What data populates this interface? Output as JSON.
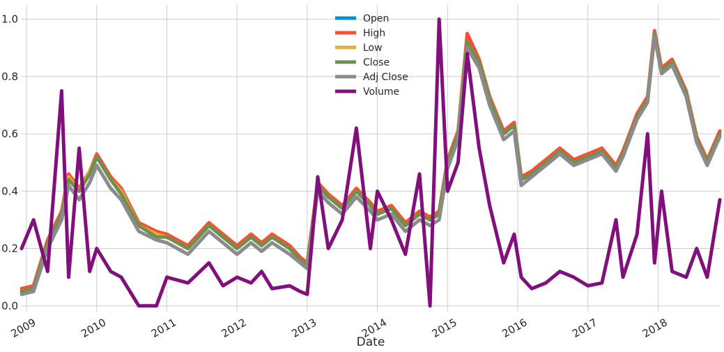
{
  "chart_data": {
    "type": "line",
    "title": "",
    "xlabel": "Date",
    "ylabel": "",
    "ylim": [
      -0.02,
      1.05
    ],
    "xlim": [
      2008.93,
      2018.88
    ],
    "grid": true,
    "legend_position": "top-center",
    "y_ticks": [
      0.0,
      0.2,
      0.4,
      0.6,
      0.8,
      1.0
    ],
    "y_tick_labels": [
      "0.0",
      "0.2",
      "0.4",
      "0.6",
      "0.8",
      "1.0"
    ],
    "x_ticks": [
      2009,
      2010,
      2011,
      2012,
      2013,
      2014,
      2015,
      2016,
      2017,
      2018
    ],
    "x_tick_labels": [
      "2009",
      "2010",
      "2011",
      "2012",
      "2013",
      "2014",
      "2015",
      "2016",
      "2017",
      "2018"
    ],
    "x": [
      2008.93,
      2009.1,
      2009.3,
      2009.5,
      2009.6,
      2009.75,
      2009.9,
      2010.0,
      2010.2,
      2010.35,
      2010.6,
      2010.85,
      2011.0,
      2011.3,
      2011.6,
      2011.8,
      2012.0,
      2012.2,
      2012.35,
      2012.5,
      2012.75,
      2012.9,
      2013.0,
      2013.15,
      2013.3,
      2013.5,
      2013.7,
      2013.9,
      2014.0,
      2014.2,
      2014.4,
      2014.6,
      2014.75,
      2014.88,
      2015.0,
      2015.15,
      2015.28,
      2015.45,
      2015.6,
      2015.8,
      2015.95,
      2016.05,
      2016.2,
      2016.4,
      2016.6,
      2016.8,
      2017.0,
      2017.2,
      2017.4,
      2017.5,
      2017.7,
      2017.85,
      2017.95,
      2018.05,
      2018.2,
      2018.4,
      2018.55,
      2018.7,
      2018.88
    ],
    "series": [
      {
        "name": "Open",
        "color": "#008fd5",
        "values": [
          0.05,
          0.06,
          0.22,
          0.32,
          0.45,
          0.4,
          0.46,
          0.52,
          0.44,
          0.4,
          0.28,
          0.25,
          0.24,
          0.2,
          0.28,
          0.24,
          0.2,
          0.24,
          0.21,
          0.24,
          0.2,
          0.16,
          0.14,
          0.42,
          0.38,
          0.34,
          0.4,
          0.35,
          0.32,
          0.34,
          0.28,
          0.32,
          0.3,
          0.32,
          0.5,
          0.6,
          0.93,
          0.85,
          0.72,
          0.6,
          0.63,
          0.44,
          0.46,
          0.5,
          0.54,
          0.5,
          0.52,
          0.54,
          0.48,
          0.53,
          0.66,
          0.72,
          0.95,
          0.82,
          0.85,
          0.74,
          0.58,
          0.5,
          0.6
        ]
      },
      {
        "name": "High",
        "color": "#fc4f30",
        "values": [
          0.06,
          0.07,
          0.23,
          0.33,
          0.46,
          0.41,
          0.47,
          0.53,
          0.45,
          0.41,
          0.29,
          0.26,
          0.25,
          0.21,
          0.29,
          0.25,
          0.21,
          0.25,
          0.22,
          0.25,
          0.21,
          0.17,
          0.15,
          0.43,
          0.39,
          0.35,
          0.41,
          0.36,
          0.33,
          0.35,
          0.29,
          0.33,
          0.31,
          0.33,
          0.51,
          0.61,
          0.95,
          0.86,
          0.73,
          0.61,
          0.64,
          0.45,
          0.47,
          0.51,
          0.55,
          0.51,
          0.53,
          0.55,
          0.49,
          0.54,
          0.67,
          0.73,
          0.96,
          0.83,
          0.86,
          0.75,
          0.59,
          0.51,
          0.61
        ]
      },
      {
        "name": "Low",
        "color": "#e5ae38",
        "values": [
          0.05,
          0.06,
          0.22,
          0.32,
          0.45,
          0.4,
          0.47,
          0.52,
          0.44,
          0.4,
          0.28,
          0.25,
          0.24,
          0.2,
          0.28,
          0.24,
          0.2,
          0.24,
          0.21,
          0.24,
          0.2,
          0.16,
          0.14,
          0.42,
          0.38,
          0.34,
          0.4,
          0.35,
          0.32,
          0.34,
          0.28,
          0.32,
          0.3,
          0.32,
          0.5,
          0.6,
          0.92,
          0.85,
          0.72,
          0.6,
          0.63,
          0.44,
          0.46,
          0.5,
          0.54,
          0.5,
          0.52,
          0.54,
          0.48,
          0.53,
          0.66,
          0.72,
          0.95,
          0.82,
          0.85,
          0.74,
          0.58,
          0.5,
          0.6
        ]
      },
      {
        "name": "Close",
        "color": "#6d904f",
        "values": [
          0.05,
          0.06,
          0.22,
          0.32,
          0.44,
          0.4,
          0.46,
          0.52,
          0.44,
          0.39,
          0.28,
          0.24,
          0.24,
          0.2,
          0.28,
          0.24,
          0.2,
          0.24,
          0.21,
          0.24,
          0.2,
          0.16,
          0.14,
          0.42,
          0.38,
          0.34,
          0.4,
          0.35,
          0.32,
          0.34,
          0.28,
          0.32,
          0.3,
          0.32,
          0.5,
          0.6,
          0.92,
          0.85,
          0.72,
          0.6,
          0.63,
          0.44,
          0.46,
          0.5,
          0.54,
          0.5,
          0.52,
          0.54,
          0.48,
          0.53,
          0.66,
          0.72,
          0.95,
          0.82,
          0.85,
          0.74,
          0.58,
          0.5,
          0.6
        ]
      },
      {
        "name": "Adj Close",
        "color": "#8b8b8b",
        "values": [
          0.04,
          0.05,
          0.2,
          0.3,
          0.42,
          0.37,
          0.43,
          0.49,
          0.41,
          0.37,
          0.26,
          0.23,
          0.22,
          0.18,
          0.26,
          0.22,
          0.18,
          0.22,
          0.19,
          0.22,
          0.18,
          0.15,
          0.13,
          0.4,
          0.36,
          0.32,
          0.38,
          0.33,
          0.3,
          0.32,
          0.26,
          0.3,
          0.28,
          0.3,
          0.48,
          0.58,
          0.9,
          0.83,
          0.7,
          0.58,
          0.61,
          0.42,
          0.45,
          0.49,
          0.53,
          0.49,
          0.51,
          0.53,
          0.47,
          0.52,
          0.65,
          0.71,
          0.94,
          0.81,
          0.84,
          0.73,
          0.57,
          0.49,
          0.59
        ]
      },
      {
        "name": "Volume",
        "color": "#810f7c",
        "values": [
          0.2,
          0.3,
          0.12,
          0.75,
          0.1,
          0.55,
          0.12,
          0.2,
          0.12,
          0.1,
          0.0,
          0.0,
          0.1,
          0.08,
          0.15,
          0.07,
          0.1,
          0.08,
          0.12,
          0.06,
          0.07,
          0.05,
          0.04,
          0.45,
          0.2,
          0.3,
          0.62,
          0.2,
          0.4,
          0.3,
          0.18,
          0.46,
          0.0,
          1.0,
          0.4,
          0.5,
          0.88,
          0.55,
          0.35,
          0.15,
          0.25,
          0.1,
          0.06,
          0.08,
          0.12,
          0.1,
          0.07,
          0.08,
          0.3,
          0.1,
          0.25,
          0.6,
          0.15,
          0.4,
          0.12,
          0.1,
          0.2,
          0.1,
          0.37
        ]
      }
    ]
  }
}
